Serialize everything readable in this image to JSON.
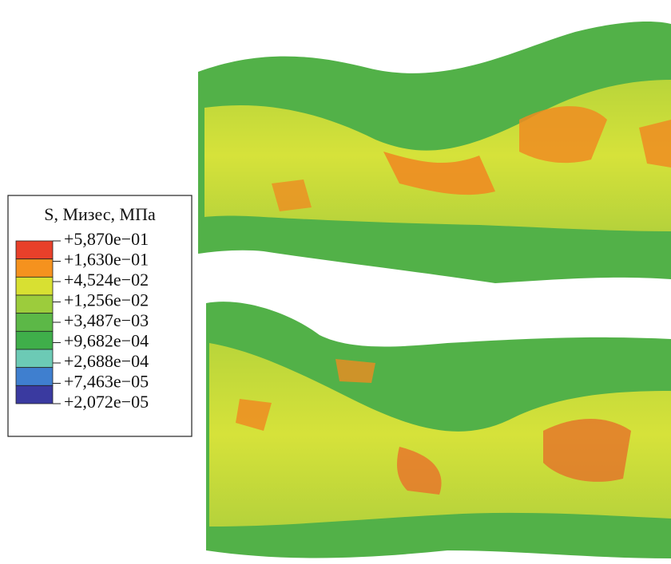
{
  "legend": {
    "title": "S, Мизес, МПа",
    "labels": [
      "+5,870e−01",
      "+1,630e−01",
      "+4,524e−02",
      "+1,256e−02",
      "+3,487e−03",
      "+9,682e−04",
      "+2,688e−04",
      "+7,463e−05",
      "+2,072e−05"
    ],
    "colors": [
      "#e8402a",
      "#f5921e",
      "#d8e032",
      "#9ccc3c",
      "#5cb847",
      "#3fae4a",
      "#6ccab5",
      "#3f7fcf",
      "#3a3aa0"
    ]
  }
}
